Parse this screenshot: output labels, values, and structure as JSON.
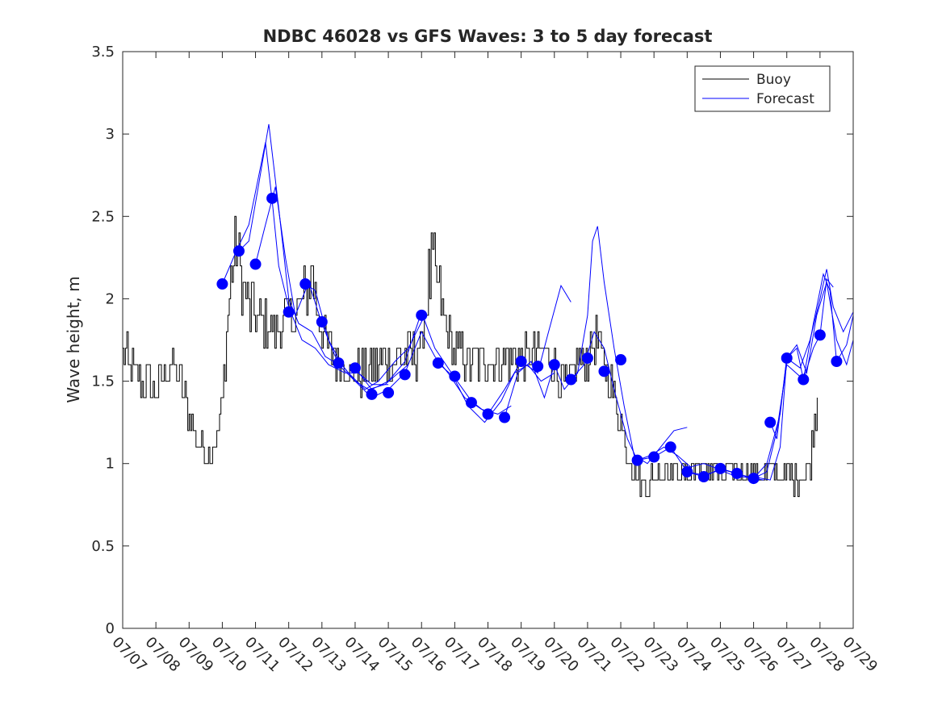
{
  "colors": {
    "buoy": "#000000",
    "forecast": "#0000ff"
  },
  "chart_data": {
    "type": "line",
    "title": "NDBC 46028 vs GFS Waves: 3 to 5 day forecast",
    "xlabel": "",
    "ylabel": "Wave height, m",
    "x_unit": "days since 07/07 00:00",
    "xlim": [
      0,
      22
    ],
    "ylim": [
      0,
      3.5
    ],
    "yticks": [
      0,
      0.5,
      1,
      1.5,
      2,
      2.5,
      3,
      3.5
    ],
    "ytick_labels": [
      "0",
      "0.5",
      "1",
      "1.5",
      "2",
      "2.5",
      "3",
      "3.5"
    ],
    "xtick_labels": [
      "07/07",
      "07/08",
      "07/09",
      "07/10",
      "07/11",
      "07/12",
      "07/13",
      "07/14",
      "07/15",
      "07/16",
      "07/17",
      "07/18",
      "07/19",
      "07/20",
      "07/21",
      "07/22",
      "07/23",
      "07/24",
      "07/25",
      "07/26",
      "07/27",
      "07/28",
      "07/29"
    ],
    "legend": {
      "position": "top-right",
      "entries": [
        "Buoy",
        "Forecast"
      ]
    },
    "buoy_baseline": [
      [
        0,
        1.7
      ],
      [
        0.15,
        1.6
      ],
      [
        0.3,
        1.55
      ],
      [
        0.6,
        1.5
      ],
      [
        0.9,
        1.45
      ],
      [
        1.2,
        1.5
      ],
      [
        1.4,
        1.6
      ],
      [
        1.6,
        1.55
      ],
      [
        1.8,
        1.45
      ],
      [
        2.0,
        1.3
      ],
      [
        2.2,
        1.15
      ],
      [
        2.4,
        1.1
      ],
      [
        2.6,
        1.05
      ],
      [
        2.8,
        1.15
      ],
      [
        3.0,
        1.35
      ],
      [
        3.1,
        1.7
      ],
      [
        3.25,
        2.1
      ],
      [
        3.4,
        2.3
      ],
      [
        3.6,
        2.1
      ],
      [
        3.8,
        1.95
      ],
      [
        4.0,
        1.9
      ],
      [
        4.3,
        1.85
      ],
      [
        4.6,
        1.8
      ],
      [
        4.9,
        1.9
      ],
      [
        5.2,
        1.9
      ],
      [
        5.5,
        2.0
      ],
      [
        5.7,
        2.2
      ],
      [
        5.85,
        1.95
      ],
      [
        6.1,
        1.75
      ],
      [
        6.4,
        1.65
      ],
      [
        6.7,
        1.6
      ],
      [
        6.9,
        1.55
      ],
      [
        7.2,
        1.55
      ],
      [
        7.5,
        1.58
      ],
      [
        7.8,
        1.62
      ],
      [
        8.1,
        1.65
      ],
      [
        8.4,
        1.65
      ],
      [
        8.7,
        1.65
      ],
      [
        9.0,
        1.7
      ],
      [
        9.1,
        1.95
      ],
      [
        9.3,
        2.2
      ],
      [
        9.5,
        2.05
      ],
      [
        9.7,
        1.85
      ],
      [
        9.9,
        1.7
      ],
      [
        10.2,
        1.65
      ],
      [
        10.5,
        1.6
      ],
      [
        10.8,
        1.62
      ],
      [
        11.1,
        1.65
      ],
      [
        11.4,
        1.62
      ],
      [
        11.7,
        1.65
      ],
      [
        12.0,
        1.62
      ],
      [
        12.3,
        1.65
      ],
      [
        12.6,
        1.7
      ],
      [
        12.9,
        1.65
      ],
      [
        13.1,
        1.55
      ],
      [
        13.4,
        1.45
      ],
      [
        13.7,
        1.6
      ],
      [
        14.0,
        1.65
      ],
      [
        14.3,
        1.75
      ],
      [
        14.5,
        1.6
      ],
      [
        14.8,
        1.4
      ],
      [
        15.0,
        1.25
      ],
      [
        15.2,
        1.05
      ],
      [
        15.4,
        0.95
      ],
      [
        15.6,
        0.88
      ],
      [
        15.9,
        0.9
      ],
      [
        16.2,
        0.95
      ],
      [
        16.5,
        0.98
      ],
      [
        16.8,
        0.97
      ],
      [
        17.1,
        0.95
      ],
      [
        17.4,
        0.97
      ],
      [
        17.7,
        0.97
      ],
      [
        18.0,
        0.95
      ],
      [
        18.3,
        0.95
      ],
      [
        18.6,
        0.95
      ],
      [
        18.9,
        0.95
      ],
      [
        19.2,
        0.95
      ],
      [
        19.5,
        0.95
      ],
      [
        19.8,
        0.93
      ],
      [
        20.1,
        0.92
      ],
      [
        20.4,
        0.92
      ],
      [
        20.6,
        0.95
      ],
      [
        20.7,
        1.0
      ],
      [
        20.85,
        1.3
      ],
      [
        20.95,
        1.55
      ]
    ],
    "buoy_noise_amplitude": 0.1,
    "forecast_points": [
      [
        3.0,
        2.09
      ],
      [
        3.5,
        2.29
      ],
      [
        4.0,
        2.21
      ],
      [
        4.5,
        2.61
      ],
      [
        5.0,
        1.92
      ],
      [
        5.5,
        2.09
      ],
      [
        6.0,
        1.86
      ],
      [
        6.5,
        1.61
      ],
      [
        7.0,
        1.58
      ],
      [
        7.5,
        1.42
      ],
      [
        8.0,
        1.43
      ],
      [
        8.5,
        1.54
      ],
      [
        9.0,
        1.9
      ],
      [
        9.5,
        1.61
      ],
      [
        10.0,
        1.53
      ],
      [
        10.5,
        1.37
      ],
      [
        11.0,
        1.3
      ],
      [
        11.5,
        1.28
      ],
      [
        12.0,
        1.62
      ],
      [
        12.5,
        1.59
      ],
      [
        13.0,
        1.6
      ],
      [
        13.5,
        1.51
      ],
      [
        14.0,
        1.64
      ],
      [
        14.5,
        1.56
      ],
      [
        15.0,
        1.63
      ],
      [
        15.5,
        1.02
      ],
      [
        16.0,
        1.04
      ],
      [
        16.5,
        1.1
      ],
      [
        17.0,
        0.95
      ],
      [
        17.5,
        0.92
      ],
      [
        18.0,
        0.97
      ],
      [
        18.5,
        0.94
      ],
      [
        19.0,
        0.91
      ],
      [
        19.5,
        1.25
      ],
      [
        20.0,
        1.64
      ],
      [
        20.5,
        1.51
      ],
      [
        21.0,
        1.78
      ],
      [
        21.5,
        1.62
      ]
    ],
    "forecast_lines": [
      [
        [
          3.0,
          2.09
        ],
        [
          3.4,
          2.28
        ],
        [
          3.8,
          2.45
        ],
        [
          4.1,
          2.75
        ],
        [
          4.3,
          2.95
        ],
        [
          4.5,
          2.6
        ],
        [
          4.7,
          2.2
        ],
        [
          5.0,
          1.95
        ],
        [
          5.4,
          1.75
        ],
        [
          5.8,
          1.7
        ],
        [
          6.2,
          1.6
        ],
        [
          6.7,
          1.55
        ],
        [
          7.1,
          1.55
        ],
        [
          7.5,
          1.48
        ],
        [
          8.0,
          1.48
        ]
      ],
      [
        [
          3.5,
          2.29
        ],
        [
          3.8,
          2.35
        ],
        [
          4.1,
          2.7
        ],
        [
          4.4,
          3.06
        ],
        [
          4.7,
          2.55
        ],
        [
          5.0,
          2.0
        ],
        [
          5.3,
          1.85
        ],
        [
          5.7,
          1.8
        ],
        [
          6.1,
          1.65
        ],
        [
          6.5,
          1.6
        ],
        [
          7.0,
          1.5
        ],
        [
          7.4,
          1.45
        ],
        [
          7.9,
          1.48
        ],
        [
          8.3,
          1.55
        ],
        [
          8.6,
          1.6
        ]
      ],
      [
        [
          4.0,
          2.21
        ],
        [
          4.3,
          2.45
        ],
        [
          4.6,
          2.68
        ],
        [
          4.9,
          2.25
        ],
        [
          5.2,
          1.9
        ],
        [
          5.6,
          2.1
        ],
        [
          6.0,
          1.85
        ],
        [
          6.4,
          1.65
        ],
        [
          6.8,
          1.55
        ],
        [
          7.3,
          1.45
        ],
        [
          7.7,
          1.5
        ],
        [
          8.2,
          1.62
        ],
        [
          8.6,
          1.7
        ],
        [
          9.1,
          1.9
        ]
      ],
      [
        [
          5.5,
          2.09
        ],
        [
          5.8,
          2.05
        ],
        [
          6.2,
          1.75
        ],
        [
          6.6,
          1.6
        ],
        [
          7.0,
          1.5
        ],
        [
          7.5,
          1.4
        ],
        [
          8.0,
          1.45
        ],
        [
          8.5,
          1.55
        ],
        [
          9.0,
          1.8
        ],
        [
          9.4,
          1.65
        ],
        [
          9.8,
          1.55
        ],
        [
          10.3,
          1.4
        ],
        [
          10.8,
          1.33
        ],
        [
          11.3,
          1.3
        ],
        [
          11.7,
          1.35
        ]
      ],
      [
        [
          7.0,
          1.58
        ],
        [
          7.5,
          1.45
        ],
        [
          8.0,
          1.5
        ],
        [
          8.5,
          1.62
        ],
        [
          9.0,
          1.92
        ],
        [
          9.4,
          1.7
        ],
        [
          9.9,
          1.55
        ],
        [
          10.4,
          1.35
        ],
        [
          10.9,
          1.25
        ],
        [
          11.4,
          1.38
        ],
        [
          11.8,
          1.55
        ],
        [
          12.2,
          1.6
        ],
        [
          12.6,
          1.5
        ],
        [
          13.0,
          1.55
        ]
      ],
      [
        [
          9.5,
          1.61
        ],
        [
          10.0,
          1.52
        ],
        [
          10.5,
          1.38
        ],
        [
          11.0,
          1.3
        ],
        [
          11.5,
          1.45
        ],
        [
          12.0,
          1.62
        ],
        [
          12.5,
          1.55
        ],
        [
          12.8,
          1.78
        ],
        [
          13.2,
          2.08
        ],
        [
          13.5,
          1.98
        ]
      ],
      [
        [
          11.5,
          1.28
        ],
        [
          11.9,
          1.55
        ],
        [
          12.3,
          1.62
        ],
        [
          12.7,
          1.4
        ],
        [
          13.0,
          1.6
        ],
        [
          13.3,
          1.45
        ],
        [
          13.7,
          1.55
        ],
        [
          14.0,
          1.9
        ],
        [
          14.15,
          2.35
        ],
        [
          14.3,
          2.44
        ],
        [
          14.5,
          2.1
        ],
        [
          14.8,
          1.7
        ],
        [
          15.1,
          1.35
        ],
        [
          15.4,
          1.05
        ],
        [
          15.8,
          1.0
        ],
        [
          16.2,
          1.1
        ],
        [
          16.6,
          1.2
        ],
        [
          17.0,
          1.22
        ]
      ],
      [
        [
          13.5,
          1.51
        ],
        [
          13.9,
          1.6
        ],
        [
          14.2,
          1.8
        ],
        [
          14.5,
          1.7
        ],
        [
          14.8,
          1.45
        ],
        [
          15.2,
          1.15
        ],
        [
          15.5,
          1.02
        ],
        [
          15.9,
          1.05
        ],
        [
          16.3,
          1.1
        ],
        [
          16.7,
          1.05
        ],
        [
          17.1,
          0.98
        ],
        [
          17.5,
          1.0
        ],
        [
          17.9,
          0.97
        ],
        [
          18.3,
          0.95
        ],
        [
          18.7,
          0.92
        ],
        [
          19.0,
          0.91
        ],
        [
          19.3,
          0.9
        ]
      ],
      [
        [
          15.5,
          1.02
        ],
        [
          16.0,
          1.04
        ],
        [
          16.5,
          1.1
        ],
        [
          17.0,
          0.95
        ],
        [
          17.5,
          0.92
        ],
        [
          18.0,
          0.97
        ],
        [
          18.5,
          0.94
        ],
        [
          19.0,
          0.91
        ],
        [
          19.4,
          1.0
        ],
        [
          19.8,
          1.3
        ],
        [
          20.0,
          1.64
        ],
        [
          20.3,
          1.7
        ],
        [
          20.5,
          1.51
        ],
        [
          20.8,
          1.7
        ],
        [
          21.0,
          1.78
        ],
        [
          21.2,
          2.12
        ],
        [
          21.4,
          2.07
        ]
      ],
      [
        [
          17.0,
          0.95
        ],
        [
          17.5,
          0.93
        ],
        [
          18.0,
          0.96
        ],
        [
          18.5,
          0.92
        ],
        [
          19.0,
          0.92
        ],
        [
          19.5,
          0.9
        ],
        [
          19.8,
          1.1
        ],
        [
          20.0,
          1.64
        ],
        [
          20.4,
          1.58
        ],
        [
          20.7,
          1.75
        ],
        [
          21.0,
          2.0
        ],
        [
          21.2,
          2.18
        ],
        [
          21.4,
          1.95
        ],
        [
          21.7,
          1.8
        ],
        [
          22.0,
          1.92
        ]
      ],
      [
        [
          19.0,
          0.91
        ],
        [
          19.4,
          0.95
        ],
        [
          19.7,
          1.2
        ],
        [
          20.0,
          1.6
        ],
        [
          20.5,
          1.51
        ],
        [
          20.8,
          1.85
        ],
        [
          21.1,
          2.15
        ],
        [
          21.3,
          2.05
        ],
        [
          21.5,
          1.62
        ],
        [
          21.8,
          1.72
        ],
        [
          22.0,
          1.9
        ]
      ],
      [
        [
          19.5,
          1.25
        ],
        [
          19.7,
          1.15
        ],
        [
          20.0,
          1.64
        ],
        [
          20.3,
          1.72
        ],
        [
          20.6,
          1.55
        ],
        [
          20.9,
          1.9
        ],
        [
          21.2,
          2.1
        ],
        [
          21.5,
          1.75
        ],
        [
          21.8,
          1.6
        ],
        [
          22.0,
          1.75
        ]
      ]
    ]
  }
}
